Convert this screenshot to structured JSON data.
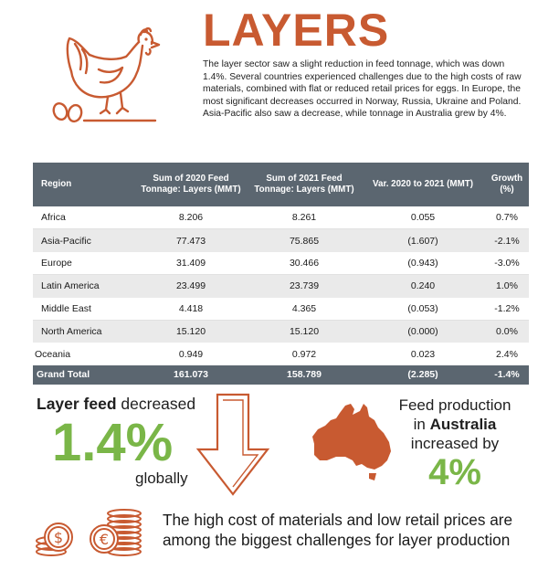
{
  "header": {
    "title": "LAYERS",
    "intro": "The layer sector saw a slight reduction in feed tonnage, which was down 1.4%. Several countries experienced challenges due to the high costs of raw materials, combined with flat or reduced retail prices for eggs. In Europe, the most significant decreases occurred in Norway, Russia, Ukraine and Poland. Asia-Pacific also saw a decrease, while tonnage in Australia grew by 4%."
  },
  "table": {
    "headers": [
      "Region",
      "Sum of 2020 Feed Tonnage: Layers (MMT)",
      "Sum of 2021 Feed Tonnage: Layers (MMT)",
      "Var. 2020 to 2021 (MMT)",
      "Growth (%)"
    ],
    "rows": [
      [
        "Africa",
        "8.206",
        "8.261",
        "0.055",
        "0.7%"
      ],
      [
        "Asia-Pacific",
        "77.473",
        "75.865",
        "(1.607)",
        "-2.1%"
      ],
      [
        "Europe",
        "31.409",
        "30.466",
        "(0.943)",
        "-3.0%"
      ],
      [
        "Latin America",
        "23.499",
        "23.739",
        "0.240",
        "1.0%"
      ],
      [
        "Middle East",
        "4.418",
        "4.365",
        "(0.053)",
        "-1.2%"
      ],
      [
        "North America",
        "15.120",
        "15.120",
        "(0.000)",
        "0.0%"
      ],
      [
        "Oceania",
        "0.949",
        "0.972",
        "0.023",
        "2.4%"
      ]
    ],
    "total": [
      "Grand Total",
      "161.073",
      "158.789",
      "(2.285)",
      "-1.4%"
    ]
  },
  "callout_left": {
    "bold": "Layer feed",
    "rest": " decreased",
    "value": "1.4%",
    "suffix": "globally"
  },
  "callout_right": {
    "line1": "Feed production",
    "line2_pre": "in ",
    "line2_bold": "Australia",
    "line3": "increased by",
    "value": "4%"
  },
  "footer": {
    "text": "The high cost of materials and low retail prices are among the biggest challenges for layer production"
  },
  "colors": {
    "accent": "#c85a31",
    "green": "#7ab648",
    "table_header": "#5b6670"
  },
  "icons": [
    "hen-icon",
    "eggs-icon",
    "down-arrow-icon",
    "australia-map-icon",
    "dollar-coins-icon",
    "euro-coins-icon"
  ]
}
